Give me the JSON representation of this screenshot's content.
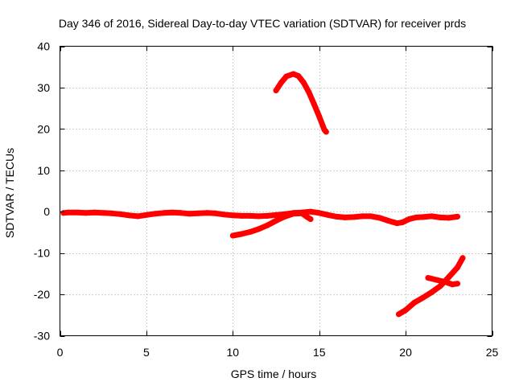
{
  "chart_data": {
    "type": "scatter",
    "title": "Day 346 of 2016, Sidereal Day-to-day VTEC variation (SDTVAR) for receiver prds",
    "xlabel": "GPS time / hours",
    "ylabel": "SDTVAR / TECUs",
    "xlim": [
      0,
      25
    ],
    "ylim": [
      -30,
      40
    ],
    "xticks": [
      0,
      5,
      10,
      15,
      20,
      25
    ],
    "yticks": [
      -30,
      -20,
      -10,
      0,
      10,
      20,
      30,
      40
    ],
    "xtick_labels": [
      "0",
      "5",
      "10",
      "15",
      "20",
      "25"
    ],
    "ytick_labels": [
      "-30",
      "-20",
      "-10",
      "0",
      "10",
      "20",
      "30",
      "40"
    ],
    "grid": true,
    "legend": "none",
    "colors": {
      "series": "#ff0000",
      "grid": "#a0a0a0",
      "axes": "#000000"
    },
    "series": [
      {
        "points": [
          [
            0.2,
            -0.3
          ],
          [
            0.5,
            -0.2
          ],
          [
            1,
            -0.2
          ],
          [
            1.5,
            -0.3
          ],
          [
            2,
            -0.2
          ],
          [
            2.5,
            -0.3
          ],
          [
            3,
            -0.4
          ],
          [
            3.5,
            -0.6
          ],
          [
            4,
            -0.9
          ],
          [
            4.5,
            -1.1
          ],
          [
            5,
            -0.8
          ],
          [
            5.5,
            -0.5
          ],
          [
            6,
            -0.3
          ],
          [
            6.5,
            -0.2
          ],
          [
            7,
            -0.3
          ],
          [
            7.5,
            -0.5
          ],
          [
            8,
            -0.4
          ],
          [
            8.5,
            -0.3
          ],
          [
            9,
            -0.4
          ],
          [
            9.5,
            -0.7
          ],
          [
            10,
            -0.9
          ],
          [
            10.5,
            -1.0
          ],
          [
            11,
            -1.0
          ],
          [
            11.5,
            -1.1
          ],
          [
            12,
            -1.0
          ],
          [
            12.5,
            -0.8
          ],
          [
            13,
            -0.6
          ],
          [
            13.5,
            -0.3
          ],
          [
            14,
            -0.2
          ],
          [
            14.5,
            0.0
          ],
          [
            15,
            -0.3
          ],
          [
            15.5,
            -0.8
          ],
          [
            16,
            -1.2
          ],
          [
            16.5,
            -1.4
          ],
          [
            17,
            -1.3
          ],
          [
            17.5,
            -1.1
          ],
          [
            18,
            -1.1
          ],
          [
            18.5,
            -1.5
          ],
          [
            19,
            -2.2
          ],
          [
            19.5,
            -2.8
          ],
          [
            19.8,
            -2.6
          ],
          [
            20.2,
            -1.8
          ],
          [
            20.6,
            -1.4
          ],
          [
            21,
            -1.3
          ],
          [
            21.5,
            -1.1
          ],
          [
            22,
            -1.4
          ],
          [
            22.5,
            -1.5
          ],
          [
            23,
            -1.2
          ]
        ]
      },
      {
        "points": [
          [
            10,
            -5.8
          ],
          [
            10.5,
            -5.4
          ],
          [
            11,
            -4.9
          ],
          [
            11.5,
            -4.2
          ],
          [
            12,
            -3.3
          ],
          [
            12.5,
            -2.2
          ],
          [
            13,
            -1.2
          ],
          [
            13.5,
            -0.5
          ],
          [
            14,
            -0.4
          ],
          [
            14.3,
            -1.3
          ],
          [
            14.5,
            -1.8
          ]
        ]
      },
      {
        "points": [
          [
            12.5,
            29.3
          ],
          [
            12.8,
            31.2
          ],
          [
            13.1,
            32.7
          ],
          [
            13.5,
            33.3
          ],
          [
            13.8,
            32.8
          ],
          [
            14.1,
            31.2
          ],
          [
            14.4,
            28.9
          ],
          [
            14.7,
            26.0
          ],
          [
            15.0,
            23.0
          ],
          [
            15.3,
            19.8
          ],
          [
            15.4,
            19.3
          ]
        ]
      },
      {
        "points": [
          [
            19.6,
            -24.8
          ],
          [
            20.0,
            -23.8
          ],
          [
            20.5,
            -22.0
          ],
          [
            21.0,
            -20.8
          ],
          [
            21.5,
            -19.5
          ],
          [
            22.0,
            -18.0
          ],
          [
            22.5,
            -15.8
          ],
          [
            23.0,
            -13.5
          ],
          [
            23.3,
            -11.2
          ]
        ]
      },
      {
        "points": [
          [
            21.3,
            -16.0
          ],
          [
            21.8,
            -16.5
          ],
          [
            22.3,
            -17.0
          ],
          [
            22.7,
            -17.6
          ],
          [
            23.0,
            -17.4
          ]
        ]
      }
    ]
  }
}
